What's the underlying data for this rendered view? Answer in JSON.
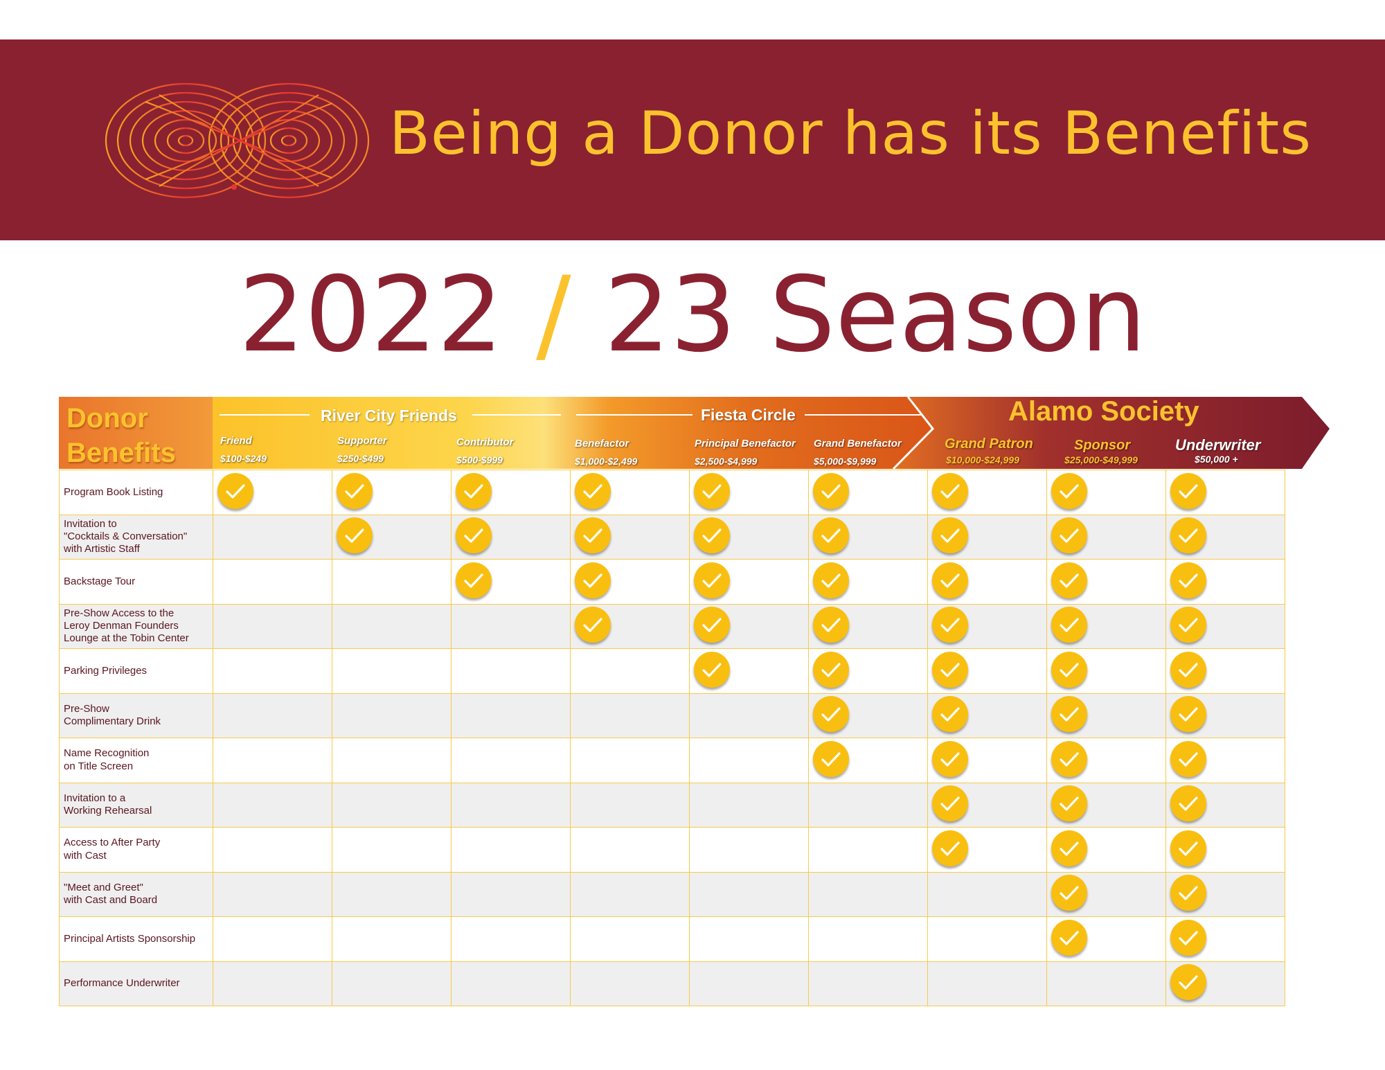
{
  "banner": {
    "title": "Being a Donor has its Benefits",
    "logo_icon": "interlaced-spiral-logo-icon"
  },
  "season": {
    "part1": "2022",
    "slash": "/",
    "part2": "23 Season"
  },
  "table_header": {
    "benefits_title": "Donor\nBenefits",
    "groups": [
      {
        "name": "River City Friends"
      },
      {
        "name": "Fiesta Circle"
      },
      {
        "name": "Alamo Society"
      }
    ],
    "tiers": [
      {
        "name": "Friend",
        "range": "$100-$249"
      },
      {
        "name": "Supporter",
        "range": "$250-$499"
      },
      {
        "name": "Contributor",
        "range": "$500-$999"
      },
      {
        "name": "Benefactor",
        "range": "$1,000-$2,499"
      },
      {
        "name": "Principal Benefactor",
        "range": "$2,500-$4,999"
      },
      {
        "name": "Grand Benefactor",
        "range": "$5,000-$9,999"
      },
      {
        "name": "Grand Patron",
        "range": "$10,000-$24,999"
      },
      {
        "name": "Sponsor",
        "range": "$25,000-$49,999"
      },
      {
        "name": "Underwriter",
        "range": "$50,000 +"
      }
    ]
  },
  "benefits": [
    {
      "label": "Program Book Listing",
      "from_tier": 0
    },
    {
      "label": "Invitation to\n\"Cocktails & Conversation\"\nwith Artistic Staff",
      "from_tier": 1
    },
    {
      "label": "Backstage Tour",
      "from_tier": 2
    },
    {
      "label": "Pre-Show Access to the\nLeroy Denman Founders\nLounge at the Tobin Center",
      "from_tier": 3
    },
    {
      "label": "Parking Privileges",
      "from_tier": 4
    },
    {
      "label": "Pre-Show\nComplimentary Drink",
      "from_tier": 5
    },
    {
      "label": "Name Recognition\non Title Screen",
      "from_tier": 5
    },
    {
      "label": "Invitation to a\nWorking Rehearsal",
      "from_tier": 6
    },
    {
      "label": "Access to After Party\nwith Cast",
      "from_tier": 6
    },
    {
      "label": "\"Meet and Greet\"\nwith Cast and Board",
      "from_tier": 7
    },
    {
      "label": "Principal Artists Sponsorship",
      "from_tier": 7
    },
    {
      "label": "Performance Underwriter",
      "from_tier": 8
    }
  ],
  "icons": {
    "check": "checkmark-icon"
  },
  "colors": {
    "maroon": "#8a2131",
    "gold": "#fcc22e",
    "orange": "#e8742c",
    "check": "#f9bf10"
  }
}
